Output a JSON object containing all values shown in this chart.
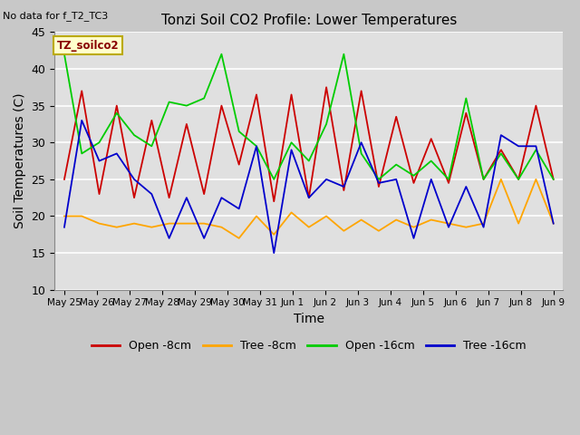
{
  "title": "Tonzi Soil CO2 Profile: Lower Temperatures",
  "subtitle": "No data for f_T2_TC3",
  "xlabel": "Time",
  "ylabel": "Soil Temperatures (C)",
  "ylim": [
    10,
    45
  ],
  "yticks": [
    10,
    15,
    20,
    25,
    30,
    35,
    40,
    45
  ],
  "x_labels": [
    "May 25",
    "May 26",
    "May 27",
    "May 28",
    "May 29",
    "May 30",
    "May 31",
    "Jun 1",
    "Jun 2",
    "Jun 3",
    "Jun 4",
    "Jun 5",
    "Jun 6",
    "Jun 7",
    "Jun 8",
    "Jun 9"
  ],
  "legend_label": "TZ_soilco2",
  "fig_facecolor": "#c8c8c8",
  "ax_facecolor": "#e0e0e0",
  "grid_color": "#ffffff",
  "series": {
    "open_8cm": {
      "color": "#cc0000",
      "label": "Open -8cm",
      "values": [
        25.0,
        37.0,
        23.0,
        35.0,
        22.5,
        33.0,
        22.5,
        32.5,
        23.0,
        35.0,
        27.0,
        36.5,
        22.0,
        36.5,
        22.5,
        37.5,
        23.5,
        37.0,
        24.0,
        33.5,
        24.5,
        30.5,
        24.5,
        34.0,
        25.0,
        29.0,
        25.0,
        35.0,
        25.0
      ]
    },
    "tree_8cm": {
      "color": "#ffa500",
      "label": "Tree -8cm",
      "values": [
        20.0,
        20.0,
        19.0,
        18.5,
        19.0,
        18.5,
        19.0,
        19.0,
        19.0,
        18.5,
        17.0,
        20.0,
        17.5,
        20.5,
        18.5,
        20.0,
        18.0,
        19.5,
        18.0,
        19.5,
        18.5,
        19.5,
        19.0,
        18.5,
        19.0,
        25.0,
        19.0,
        25.0,
        19.0
      ]
    },
    "open_16cm": {
      "color": "#00cc00",
      "label": "Open -16cm",
      "values": [
        42.0,
        28.5,
        30.0,
        34.0,
        31.0,
        29.5,
        35.5,
        35.0,
        36.0,
        42.0,
        31.5,
        29.5,
        25.0,
        30.0,
        27.5,
        32.5,
        42.0,
        28.5,
        25.0,
        27.0,
        25.5,
        27.5,
        25.0,
        36.0,
        25.0,
        28.5,
        25.0,
        29.0,
        25.0
      ]
    },
    "tree_16cm": {
      "color": "#0000cc",
      "label": "Tree -16cm",
      "values": [
        18.5,
        33.0,
        27.5,
        28.5,
        25.0,
        23.0,
        17.0,
        22.5,
        17.0,
        22.5,
        21.0,
        29.5,
        15.0,
        29.0,
        22.5,
        25.0,
        24.0,
        30.0,
        24.5,
        25.0,
        17.0,
        25.0,
        18.5,
        24.0,
        18.5,
        31.0,
        29.5,
        29.5,
        19.0
      ]
    }
  }
}
